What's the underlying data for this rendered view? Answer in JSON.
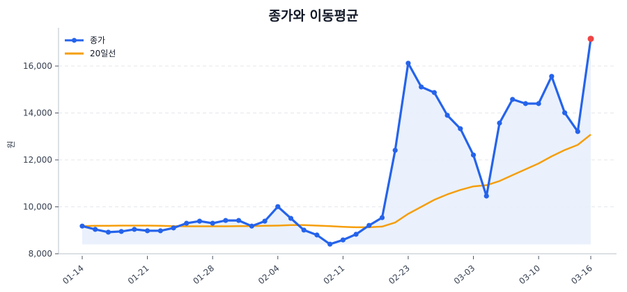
{
  "chart_data": {
    "type": "line",
    "title": "종가와 이동평균",
    "xlabel": "",
    "ylabel": "원",
    "ylim": [
      8000,
      17600
    ],
    "yticks": [
      8000,
      10000,
      12000,
      14000,
      16000
    ],
    "ytick_labels": [
      "8,000",
      "10,000",
      "12,000",
      "14,000",
      "16,000"
    ],
    "xtick_labels": [
      "01-14",
      "01-21",
      "01-28",
      "02-04",
      "02-11",
      "02-23",
      "03-03",
      "03-10",
      "03-16"
    ],
    "xtick_index": [
      0,
      5,
      10,
      15,
      20,
      25,
      30,
      35,
      39
    ],
    "grid": "y dashed",
    "legend_position": "upper left",
    "fill_baseline": 8400,
    "series": [
      {
        "name": "종가",
        "color": "#2563eb",
        "marker": "circle",
        "last_point_color": "#ef4444",
        "values": [
          9180,
          9040,
          8920,
          8950,
          9040,
          8980,
          8980,
          9100,
          9300,
          9390,
          9300,
          9420,
          9420,
          9180,
          9390,
          10010,
          9510,
          9010,
          8800,
          8410,
          8590,
          8830,
          9210,
          9540,
          12410,
          16120,
          15110,
          14870,
          13900,
          13330,
          12210,
          10460,
          13570,
          14580,
          14400,
          14400,
          15560,
          14010,
          13210,
          17160
        ]
      },
      {
        "name": "20일선",
        "color": "#f59e0b",
        "marker": "none",
        "values": [
          9180,
          9190,
          9190,
          9200,
          9200,
          9200,
          9190,
          9180,
          9170,
          9170,
          9170,
          9170,
          9180,
          9180,
          9190,
          9200,
          9220,
          9220,
          9200,
          9180,
          9150,
          9130,
          9130,
          9160,
          9330,
          9700,
          10000,
          10300,
          10530,
          10720,
          10870,
          10920,
          11100,
          11350,
          11600,
          11850,
          12150,
          12420,
          12640,
          13080
        ]
      }
    ]
  },
  "legend": {
    "items": [
      {
        "label": "종가"
      },
      {
        "label": "20일선"
      }
    ]
  }
}
